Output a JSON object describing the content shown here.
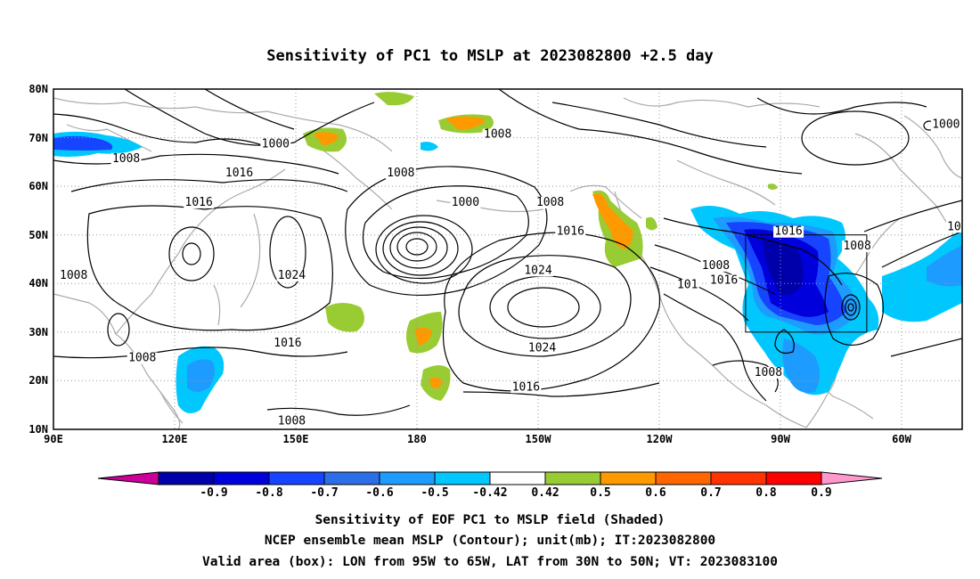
{
  "title": "Sensitivity of PC1 to MSLP at 2023082800 +2.5 day",
  "map": {
    "lat_labels": [
      "10N",
      "20N",
      "30N",
      "40N",
      "50N",
      "60N",
      "70N",
      "80N"
    ],
    "lon_labels": [
      "90E",
      "120E",
      "150E",
      "180",
      "150W",
      "120W",
      "90W",
      "60W"
    ],
    "lat_range": [
      10,
      80
    ],
    "lon_range": [
      90,
      315
    ],
    "grid": "dotted",
    "valid_box": {
      "lon": [
        265,
        295
      ],
      "lat": [
        30,
        50
      ]
    },
    "contour_labels": [
      {
        "text": "1000",
        "lon": 145,
        "lat": 68
      },
      {
        "text": "1008",
        "lon": 108,
        "lat": 65
      },
      {
        "text": "1016",
        "lon": 136,
        "lat": 62
      },
      {
        "text": "1016",
        "lon": 126,
        "lat": 56
      },
      {
        "text": "1008",
        "lon": 176,
        "lat": 62
      },
      {
        "text": "1008",
        "lon": 200,
        "lat": 70
      },
      {
        "text": "1000",
        "lon": 192,
        "lat": 56
      },
      {
        "text": "1008",
        "lon": 213,
        "lat": 56
      },
      {
        "text": "1016",
        "lon": 218,
        "lat": 50
      },
      {
        "text": "1024",
        "lon": 149,
        "lat": 41
      },
      {
        "text": "1008",
        "lon": 95,
        "lat": 41
      },
      {
        "text": "1024",
        "lon": 210,
        "lat": 42
      },
      {
        "text": "1016",
        "lon": 148,
        "lat": 27
      },
      {
        "text": "1008",
        "lon": 112,
        "lat": 24
      },
      {
        "text": "1024",
        "lon": 211,
        "lat": 26
      },
      {
        "text": "1016",
        "lon": 207,
        "lat": 18
      },
      {
        "text": "1008",
        "lon": 149,
        "lat": 11
      },
      {
        "text": "1008",
        "lon": 254,
        "lat": 43
      },
      {
        "text": "1016",
        "lon": 256,
        "lat": 40
      },
      {
        "text": "101",
        "lon": 247,
        "lat": 39
      },
      {
        "text": "1016",
        "lon": 272,
        "lat": 50
      },
      {
        "text": "1008",
        "lon": 289,
        "lat": 47
      },
      {
        "text": "1000",
        "lon": 311,
        "lat": 72
      },
      {
        "text": "1008",
        "lon": 267,
        "lat": 21
      },
      {
        "text": "10",
        "lon": 313,
        "lat": 51
      }
    ],
    "highs": [
      {
        "lon": 209,
        "lat": 35
      }
    ],
    "lows": [
      {
        "lon": 180,
        "lat": 47
      },
      {
        "lon": 293,
        "lat": 35
      }
    ]
  },
  "colorbar": {
    "labels": [
      "-0.9",
      "-0.8",
      "-0.7",
      "-0.6",
      "-0.5",
      "-0.42",
      "0.42",
      "0.5",
      "0.6",
      "0.7",
      "0.8",
      "0.9"
    ],
    "colors": [
      "#0000aa",
      "#0000dd",
      "#1744ff",
      "#2c6ee8",
      "#1e9bff",
      "#00c8ff",
      "#ffffff",
      "#99cc33",
      "#ff9900",
      "#ff6600",
      "#ff3300",
      "#ff0000"
    ],
    "low_end_color": "#cc0099",
    "high_end_color": "#ff99cc"
  },
  "captions": [
    "Sensitivity of EOF PC1 to MSLP field (Shaded)",
    "NCEP ensemble mean MSLP (Contour); unit(mb); IT:2023082800",
    "Valid area (box): LON from 95W to 65W, LAT from 30N to 50N; VT: 2023083100"
  ]
}
